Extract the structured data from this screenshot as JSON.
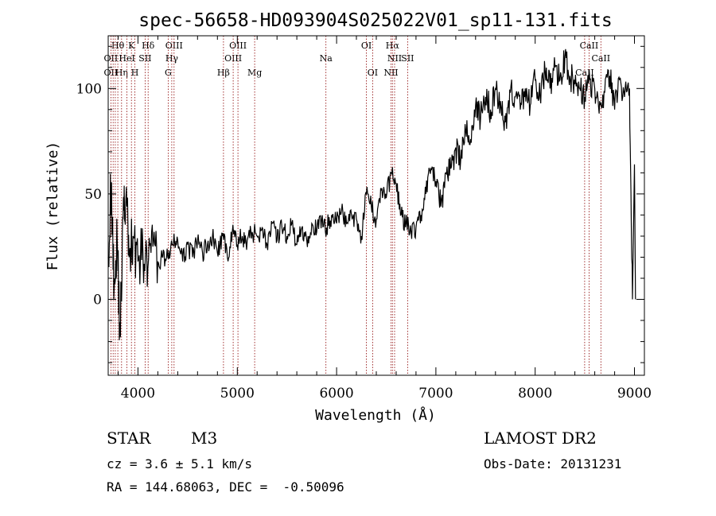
{
  "chart_data": {
    "type": "line",
    "title": "spec-56658-HD093904S025022V01_sp11-131.fits",
    "xlabel": "Wavelength (Å)",
    "ylabel": "Flux (relative)",
    "xlim": [
      3700,
      9100
    ],
    "ylim": [
      -36,
      125
    ],
    "x_ticks": [
      4000,
      5000,
      6000,
      7000,
      8000,
      9000
    ],
    "y_ticks": [
      0,
      50,
      100
    ],
    "grid": false,
    "series": [
      {
        "values_x": [
          3700,
          3730,
          3760,
          3790,
          3820,
          3850,
          3880,
          3910,
          3950,
          4000,
          4050,
          4100,
          4150,
          4200,
          4250,
          4300,
          4350,
          4400,
          4450,
          4500,
          4550,
          4600,
          4650,
          4700,
          4750,
          4800,
          4850,
          4900,
          4950,
          5000,
          5050,
          5100,
          5150,
          5200,
          5250,
          5300,
          5350,
          5400,
          5450,
          5500,
          5550,
          5600,
          5650,
          5700,
          5750,
          5800,
          5850,
          5900,
          5950,
          6000,
          6050,
          6100,
          6150,
          6200,
          6250,
          6300,
          6350,
          6400,
          6450,
          6500,
          6550,
          6600,
          6650,
          6700,
          6750,
          6800,
          6850,
          6900,
          6950,
          7000,
          7050,
          7100,
          7150,
          7200,
          7250,
          7300,
          7350,
          7400,
          7450,
          7500,
          7550,
          7600,
          7650,
          7700,
          7750,
          7800,
          7850,
          7900,
          7950,
          8000,
          8050,
          8100,
          8150,
          8200,
          8250,
          8300,
          8350,
          8400,
          8450,
          8500,
          8550,
          8600,
          8650,
          8700,
          8750,
          8800,
          8850,
          8900,
          8950,
          8980,
          9000,
          9010
        ],
        "values_y": [
          20,
          55,
          5,
          30,
          -18,
          38,
          50,
          20,
          30,
          18,
          22,
          15,
          25,
          18,
          20,
          20,
          26,
          28,
          18,
          26,
          20,
          28,
          22,
          26,
          30,
          22,
          30,
          20,
          32,
          26,
          30,
          28,
          32,
          30,
          34,
          26,
          36,
          28,
          34,
          30,
          36,
          26,
          34,
          28,
          36,
          32,
          38,
          34,
          40,
          36,
          42,
          36,
          40,
          38,
          30,
          50,
          44,
          38,
          52,
          48,
          60,
          55,
          40,
          36,
          32,
          34,
          40,
          50,
          62,
          56,
          44,
          60,
          62,
          72,
          66,
          80,
          76,
          92,
          86,
          96,
          90,
          100,
          94,
          84,
          98,
          96,
          90,
          100,
          92,
          104,
          96,
          108,
          100,
          110,
          104,
          115,
          106,
          102,
          100,
          96,
          104,
          100,
          94,
          98,
          106,
          90,
          104,
          96,
          100,
          0,
          64,
          0
        ]
      }
    ],
    "line_labels": [
      {
        "text": "Hθ",
        "x": 3797,
        "row": 1
      },
      {
        "text": "K",
        "x": 3934,
        "row": 1
      },
      {
        "text": "Hδ",
        "x": 4102,
        "row": 1
      },
      {
        "text": "OIII",
        "x": 4363,
        "row": 1
      },
      {
        "text": "OIII",
        "x": 5007,
        "row": 1
      },
      {
        "text": "OI",
        "x": 6300,
        "row": 1
      },
      {
        "text": "Hα",
        "x": 6563,
        "row": 1
      },
      {
        "text": "CaII",
        "x": 8542,
        "row": 1
      },
      {
        "text": "OII",
        "x": 3727,
        "row": 2
      },
      {
        "text": "HeI",
        "x": 3889,
        "row": 2
      },
      {
        "text": "SII",
        "x": 4072,
        "row": 2
      },
      {
        "text": "Hγ",
        "x": 4340,
        "row": 2
      },
      {
        "text": "OIII",
        "x": 4959,
        "row": 2
      },
      {
        "text": "Na",
        "x": 5893,
        "row": 2
      },
      {
        "text": "NII",
        "x": 6584,
        "row": 2
      },
      {
        "text": "SII",
        "x": 6716,
        "row": 2
      },
      {
        "text": "CaII",
        "x": 8662,
        "row": 2
      },
      {
        "text": "OII",
        "x": 3727,
        "row": 3
      },
      {
        "text": "Hη",
        "x": 3835,
        "row": 3
      },
      {
        "text": "H",
        "x": 3968,
        "row": 3
      },
      {
        "text": "G",
        "x": 4304,
        "row": 3
      },
      {
        "text": "Hβ",
        "x": 4861,
        "row": 3
      },
      {
        "text": "Mg",
        "x": 5175,
        "row": 3
      },
      {
        "text": "OI",
        "x": 6363,
        "row": 3
      },
      {
        "text": "NII",
        "x": 6548,
        "row": 3
      },
      {
        "text": "CaII",
        "x": 8498,
        "row": 3
      }
    ],
    "line_marker_x": [
      3727,
      3750,
      3771,
      3797,
      3835,
      3889,
      3934,
      3968,
      4072,
      4102,
      4304,
      4340,
      4363,
      4861,
      4959,
      5007,
      5175,
      5893,
      6300,
      6363,
      6548,
      6563,
      6584,
      6716,
      8498,
      8542,
      8662
    ],
    "line_marker_color": "#8b0000"
  },
  "info": {
    "object_class": "STAR",
    "subclass": "M3",
    "survey": "LAMOST DR2",
    "cz": "cz = 3.6 ± 5.1 km/s",
    "obs_date": "Obs-Date: 20131231",
    "coords": "RA = 144.68063, DEC =  -0.50096"
  }
}
